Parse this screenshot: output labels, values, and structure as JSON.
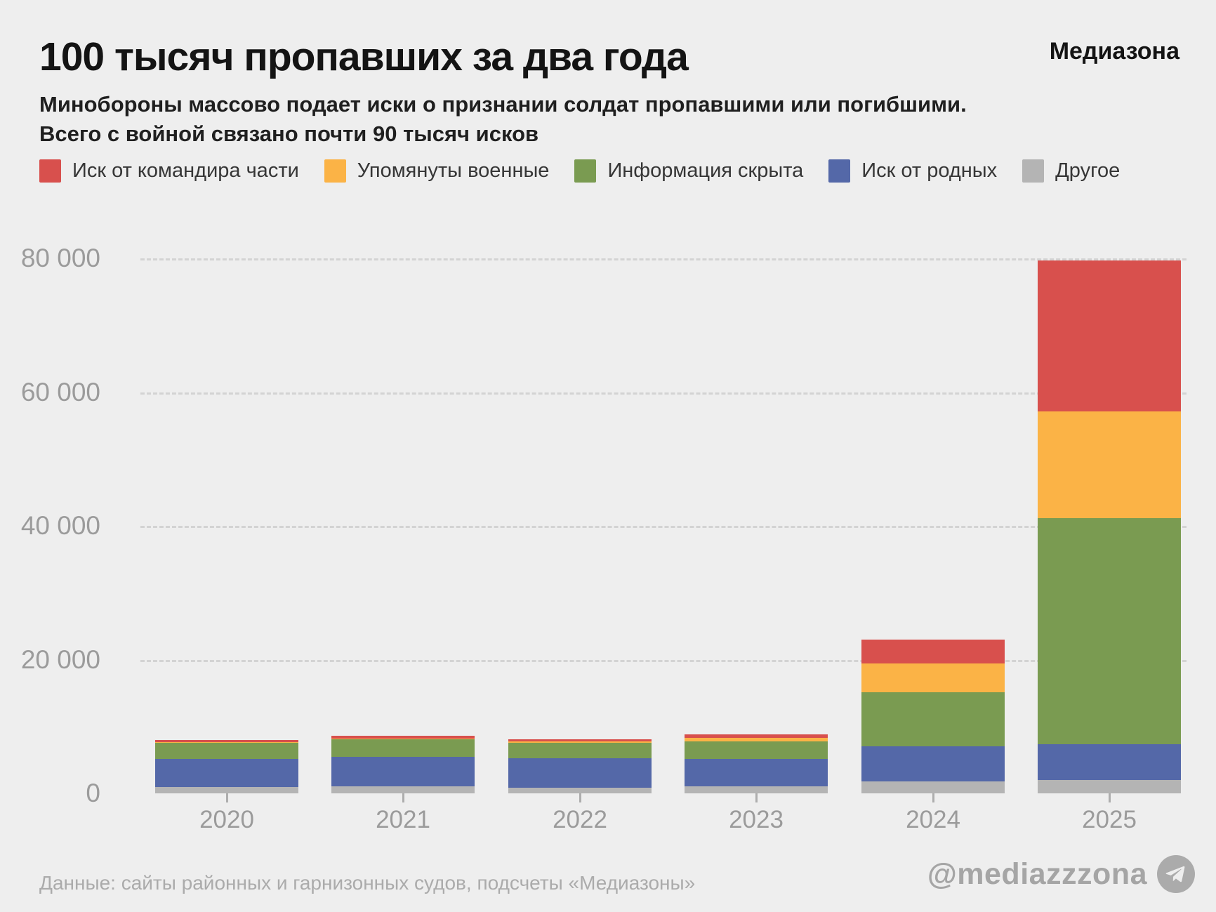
{
  "header": {
    "title": "100 тысяч пропавших за два года",
    "logo": "Медиазона"
  },
  "subtitle": {
    "line1": "Минобороны массово подает иски о признании солдат пропавшими или погибшими.",
    "line2": "Всего с войной связано почти 90 тысяч исков"
  },
  "footer": {
    "source": "Данные: сайты районных и гарнизонных судов, подсчеты «Медиазоны»",
    "handle": "@mediazzzona",
    "icon": "telegram-plane-icon"
  },
  "colors": {
    "background": "#eeeeee",
    "title_text": "#141414",
    "axis_text": "#9b9b9b",
    "gridline": "#d3d3d3",
    "footer_text": "#ababab",
    "red": "#d8504d",
    "orange": "#fbb346",
    "green": "#7a9b51",
    "blue": "#5468a8",
    "gray": "#b4b4b4"
  },
  "chart_data": {
    "type": "bar",
    "stacked": true,
    "title": "100 тысяч пропавших за два года",
    "categories": [
      "2020",
      "2021",
      "2022",
      "2023",
      "2024",
      "2025"
    ],
    "series": [
      {
        "name": "Иск от командира части",
        "color": "#d8504d",
        "values": [
          300,
          400,
          300,
          500,
          3600,
          22600
        ]
      },
      {
        "name": "Упомянуты военные",
        "color": "#fbb346",
        "values": [
          100,
          100,
          200,
          500,
          4300,
          15900
        ]
      },
      {
        "name": "Информация скрыта",
        "color": "#7a9b51",
        "values": [
          2400,
          2600,
          2300,
          2700,
          8100,
          33900
        ]
      },
      {
        "name": "Иск от родных",
        "color": "#5468a8",
        "values": [
          4200,
          4500,
          4500,
          4100,
          5200,
          5300
        ]
      },
      {
        "name": "Другое",
        "color": "#b4b4b4",
        "values": [
          950,
          1000,
          800,
          1000,
          1800,
          2000
        ]
      }
    ],
    "totals": [
      7950,
      8600,
      8100,
      8800,
      23000,
      79700
    ],
    "stack_order_bottom_to_top": [
      "Другое",
      "Иск от родных",
      "Информация скрыта",
      "Упомянуты военные",
      "Иск от командира части"
    ],
    "ylim": [
      0,
      80000
    ],
    "y_ticks": [
      {
        "value": 0,
        "label": "0"
      },
      {
        "value": 20000,
        "label": "20 000"
      },
      {
        "value": 40000,
        "label": "40 000"
      },
      {
        "value": 60000,
        "label": "60 000"
      },
      {
        "value": 80000,
        "label": "80 000"
      }
    ],
    "grid": "horizontal-dashed",
    "legend_position": "top"
  }
}
